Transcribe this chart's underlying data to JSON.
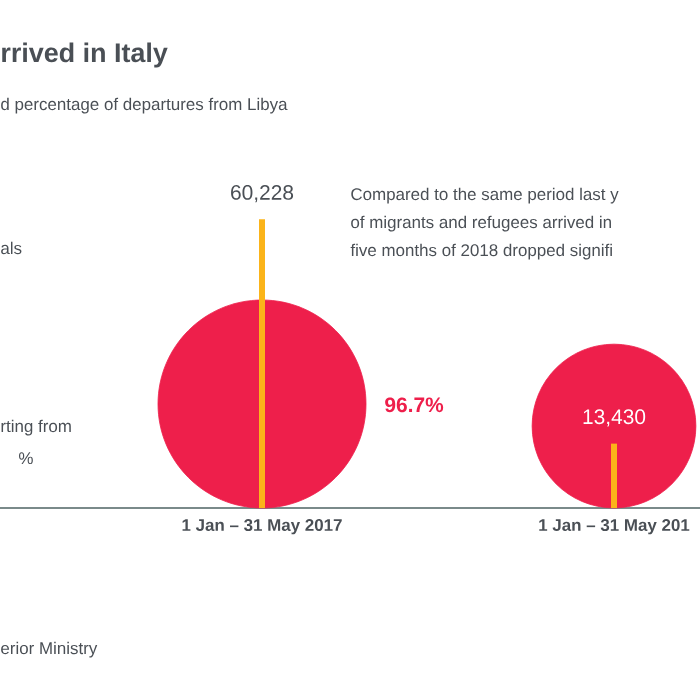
{
  "chart_data": {
    "type": "bar",
    "title": "rrived in Italy",
    "subtitle": "d percentage of departures from Libya",
    "categories": [
      "1 Jan – 31 May 2017",
      "1 Jan – 31 May 201"
    ],
    "series": [
      {
        "type": "bubble",
        "color": "#ee1f4b",
        "values": [
          21700,
          17100
        ],
        "sizes": [
          1,
          0.62
        ]
      },
      {
        "type": "bar",
        "color": "#fbb41a",
        "values": [
          60228,
          13430
        ],
        "value_labels": [
          "60,228",
          "13,430"
        ]
      }
    ],
    "annotations": [
      "als",
      "rting from",
      "%",
      "Compared to the same period last y",
      "of migrants and refugees arrived in",
      "five months of 2018 dropped signifi",
      "erior Ministry",
      "96.7%"
    ]
  }
}
